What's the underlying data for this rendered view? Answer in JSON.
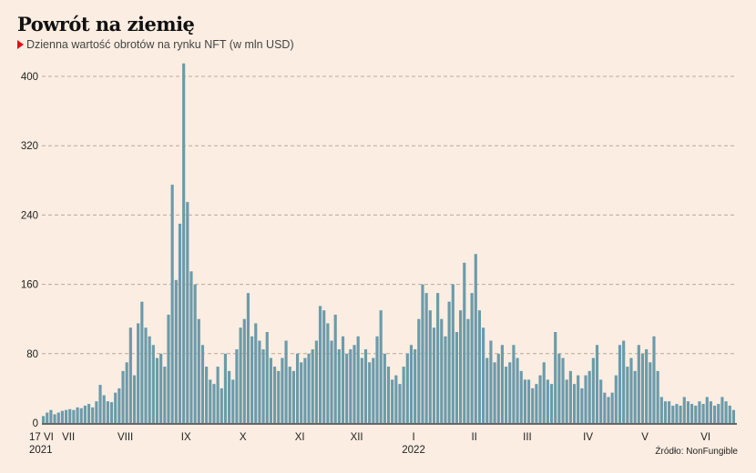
{
  "chart_data": {
    "type": "bar",
    "title": "Powrót na ziemię",
    "subtitle": "Dzienna wartość obrotów na rynku NFT (w mln USD)",
    "source": "Źródło: NonFungible",
    "xlabel": "",
    "ylabel": "",
    "ylim": [
      0,
      400
    ],
    "yticks": [
      "0",
      "80",
      "160",
      "240",
      "320",
      "400"
    ],
    "grid": true,
    "x_period": "17 VI 2021 – VI 2022, 2-day bins",
    "xtick_labels": [
      {
        "label": "17 VI",
        "bar_index": 0
      },
      {
        "label": "VII",
        "bar_index": 7
      },
      {
        "label": "VIII",
        "bar_index": 22
      },
      {
        "label": "IX",
        "bar_index": 38
      },
      {
        "label": "X",
        "bar_index": 53
      },
      {
        "label": "XI",
        "bar_index": 68
      },
      {
        "label": "XII",
        "bar_index": 83
      },
      {
        "label": "I",
        "bar_index": 98
      },
      {
        "label": "II",
        "bar_index": 114
      },
      {
        "label": "III",
        "bar_index": 128
      },
      {
        "label": "IV",
        "bar_index": 144
      },
      {
        "label": "V",
        "bar_index": 159
      },
      {
        "label": "VI",
        "bar_index": 175
      }
    ],
    "year_labels": [
      {
        "label": "2021",
        "bar_index": 0
      },
      {
        "label": "2022",
        "bar_index": 98
      }
    ],
    "values": [
      8,
      12,
      15,
      10,
      12,
      14,
      15,
      16,
      15,
      18,
      17,
      20,
      22,
      18,
      25,
      44,
      32,
      25,
      24,
      35,
      40,
      60,
      70,
      110,
      55,
      115,
      140,
      110,
      100,
      90,
      75,
      80,
      65,
      125,
      275,
      165,
      230,
      415,
      255,
      175,
      160,
      120,
      90,
      65,
      50,
      45,
      65,
      40,
      80,
      60,
      50,
      85,
      110,
      120,
      150,
      100,
      115,
      95,
      85,
      105,
      75,
      65,
      60,
      75,
      95,
      65,
      60,
      80,
      70,
      75,
      80,
      85,
      95,
      135,
      130,
      115,
      95,
      125,
      85,
      100,
      80,
      85,
      90,
      100,
      75,
      85,
      70,
      75,
      100,
      130,
      80,
      65,
      50,
      55,
      45,
      65,
      80,
      90,
      85,
      120,
      160,
      150,
      130,
      110,
      150,
      120,
      100,
      140,
      160,
      105,
      130,
      185,
      120,
      150,
      195,
      130,
      110,
      75,
      95,
      70,
      80,
      90,
      65,
      70,
      90,
      75,
      60,
      50,
      50,
      40,
      45,
      55,
      70,
      50,
      45,
      105,
      80,
      75,
      50,
      60,
      45,
      55,
      40,
      55,
      60,
      75,
      90,
      50,
      35,
      30,
      35,
      55,
      90,
      95,
      65,
      75,
      60,
      90,
      80,
      85,
      70,
      100,
      60,
      30,
      25,
      25,
      20,
      22,
      20,
      30,
      25,
      22,
      20,
      25,
      22,
      30,
      25,
      20,
      22,
      30,
      25,
      20,
      15
    ],
    "colors": {
      "bar": "#6b9bab",
      "grid": "#b9aa9c",
      "accent": "#e0101a"
    }
  }
}
